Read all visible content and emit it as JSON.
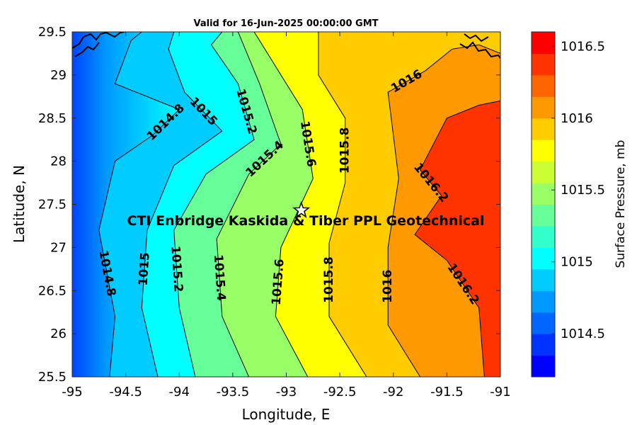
{
  "chart_data": {
    "type": "contour",
    "title": "Valid for 16-Jun-2025 00:00:00 GMT",
    "xlabel": "Longitude, E",
    "ylabel": "Latitude, N",
    "xlim": [
      -95,
      -91
    ],
    "ylim": [
      25.5,
      29.5
    ],
    "xticks": [
      -95,
      -94.5,
      -94,
      -93.5,
      -93,
      -92.5,
      -92,
      -91.5,
      -91
    ],
    "xtick_labels": [
      "-95",
      "-94.5",
      "-94",
      "-93.5",
      "-93",
      "-92.5",
      "-92",
      "-91.5",
      "-91"
    ],
    "yticks": [
      25.5,
      26,
      26.5,
      27,
      27.5,
      28,
      28.5,
      29,
      29.5
    ],
    "ytick_labels": [
      "25.5",
      "26",
      "26.5",
      "27",
      "27.5",
      "28",
      "28.5",
      "29",
      "29.5"
    ],
    "colorbar": {
      "label": "Surface Pressure, mb",
      "min": 1014.2,
      "max": 1016.6,
      "ticks": [
        1014.5,
        1015,
        1015.5,
        1016,
        1016.5
      ],
      "tick_labels": [
        "1014.5",
        "1015",
        "1015.5",
        "1016",
        "1016.5"
      ],
      "colors": [
        "#0000ff",
        "#0033ff",
        "#0066ff",
        "#0099ff",
        "#00ccff",
        "#00ffff",
        "#33ffcc",
        "#66ff99",
        "#99ff66",
        "#ccff33",
        "#ffff00",
        "#ffcc00",
        "#ff9900",
        "#ff6600",
        "#ff3300",
        "#ff0000"
      ]
    },
    "contour_levels": [
      {
        "value": 1014.8,
        "label": "1014.8",
        "points": [
          [
            -94.65,
            25.5
          ],
          [
            -94.6,
            26.2
          ],
          [
            -94.75,
            27.2
          ],
          [
            -94.6,
            28.0
          ],
          [
            -94.25,
            28.3
          ],
          [
            -94.0,
            28.6
          ],
          [
            -94.6,
            28.9
          ],
          [
            -94.45,
            29.4
          ],
          [
            -94.35,
            29.5
          ]
        ]
      },
      {
        "value": 1015,
        "label": "1015",
        "points": [
          [
            -94.2,
            25.5
          ],
          [
            -94.35,
            26.3
          ],
          [
            -94.3,
            27.2
          ],
          [
            -94.05,
            27.95
          ],
          [
            -93.6,
            28.35
          ],
          [
            -93.95,
            28.8
          ],
          [
            -94.1,
            29.3
          ],
          [
            -94.05,
            29.5
          ]
        ]
      },
      {
        "value": 1015.2,
        "label": "1015.2",
        "points": [
          [
            -93.85,
            25.5
          ],
          [
            -94.0,
            26.3
          ],
          [
            -94.05,
            27.2
          ],
          [
            -93.75,
            27.85
          ],
          [
            -93.3,
            28.25
          ],
          [
            -93.45,
            28.9
          ],
          [
            -93.7,
            29.35
          ],
          [
            -93.6,
            29.5
          ]
        ]
      },
      {
        "value": 1015.4,
        "label": "1015.4",
        "points": [
          [
            -93.35,
            25.5
          ],
          [
            -93.6,
            26.2
          ],
          [
            -93.65,
            27.1
          ],
          [
            -93.35,
            27.85
          ],
          [
            -93.05,
            28.2
          ],
          [
            -93.25,
            28.9
          ],
          [
            -93.45,
            29.5
          ]
        ]
      },
      {
        "value": 1015.6,
        "label": "1015.6",
        "points": [
          [
            -92.8,
            25.5
          ],
          [
            -93.1,
            26.2
          ],
          [
            -93.05,
            27.0
          ],
          [
            -92.75,
            27.8
          ],
          [
            -92.85,
            28.6
          ],
          [
            -93.15,
            29.2
          ],
          [
            -93.3,
            29.5
          ]
        ]
      },
      {
        "value": 1015.8,
        "label": "1015.8",
        "points": [
          [
            -92.25,
            25.5
          ],
          [
            -92.6,
            26.2
          ],
          [
            -92.6,
            27.05
          ],
          [
            -92.45,
            27.75
          ],
          [
            -92.45,
            28.5
          ],
          [
            -92.7,
            29.0
          ],
          [
            -92.7,
            29.5
          ]
        ]
      },
      {
        "value": 1016,
        "label": "1016",
        "points": [
          [
            -91.75,
            25.5
          ],
          [
            -92.05,
            26.1
          ],
          [
            -92.05,
            27.0
          ],
          [
            -91.95,
            27.8
          ],
          [
            -92.05,
            28.8
          ],
          [
            -91.7,
            29.05
          ],
          [
            -91.45,
            29.3
          ],
          [
            -91.2,
            29.35
          ],
          [
            -91.0,
            29.25
          ]
        ]
      },
      {
        "value": 1016.2,
        "label": "1016.2",
        "points": [
          [
            -91.15,
            25.5
          ],
          [
            -91.2,
            26.3
          ],
          [
            -91.5,
            26.85
          ],
          [
            -91.8,
            27.15
          ],
          [
            -91.55,
            27.6
          ],
          [
            -91.75,
            27.9
          ],
          [
            -91.5,
            28.5
          ],
          [
            -91.2,
            28.65
          ],
          [
            -91.0,
            28.7
          ]
        ]
      }
    ],
    "site_marker": {
      "lon": -92.86,
      "lat": 27.43,
      "symbol": "star"
    },
    "annotation": "CTI Enbridge  Kaskida & Tiber PPL Geotechnical",
    "grid": false,
    "legend": "none"
  }
}
